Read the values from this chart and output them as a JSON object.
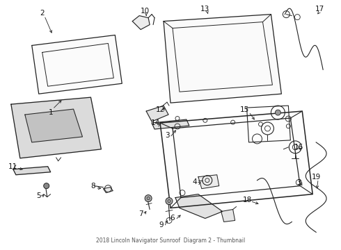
{
  "title": "2018 Lincoln Navigator Sunroof  Diagram 2 - Thumbnail",
  "bg_color": "#ffffff",
  "lc": "#222222",
  "tc": "#111111",
  "figsize": [
    4.9,
    3.6
  ],
  "dpi": 100
}
